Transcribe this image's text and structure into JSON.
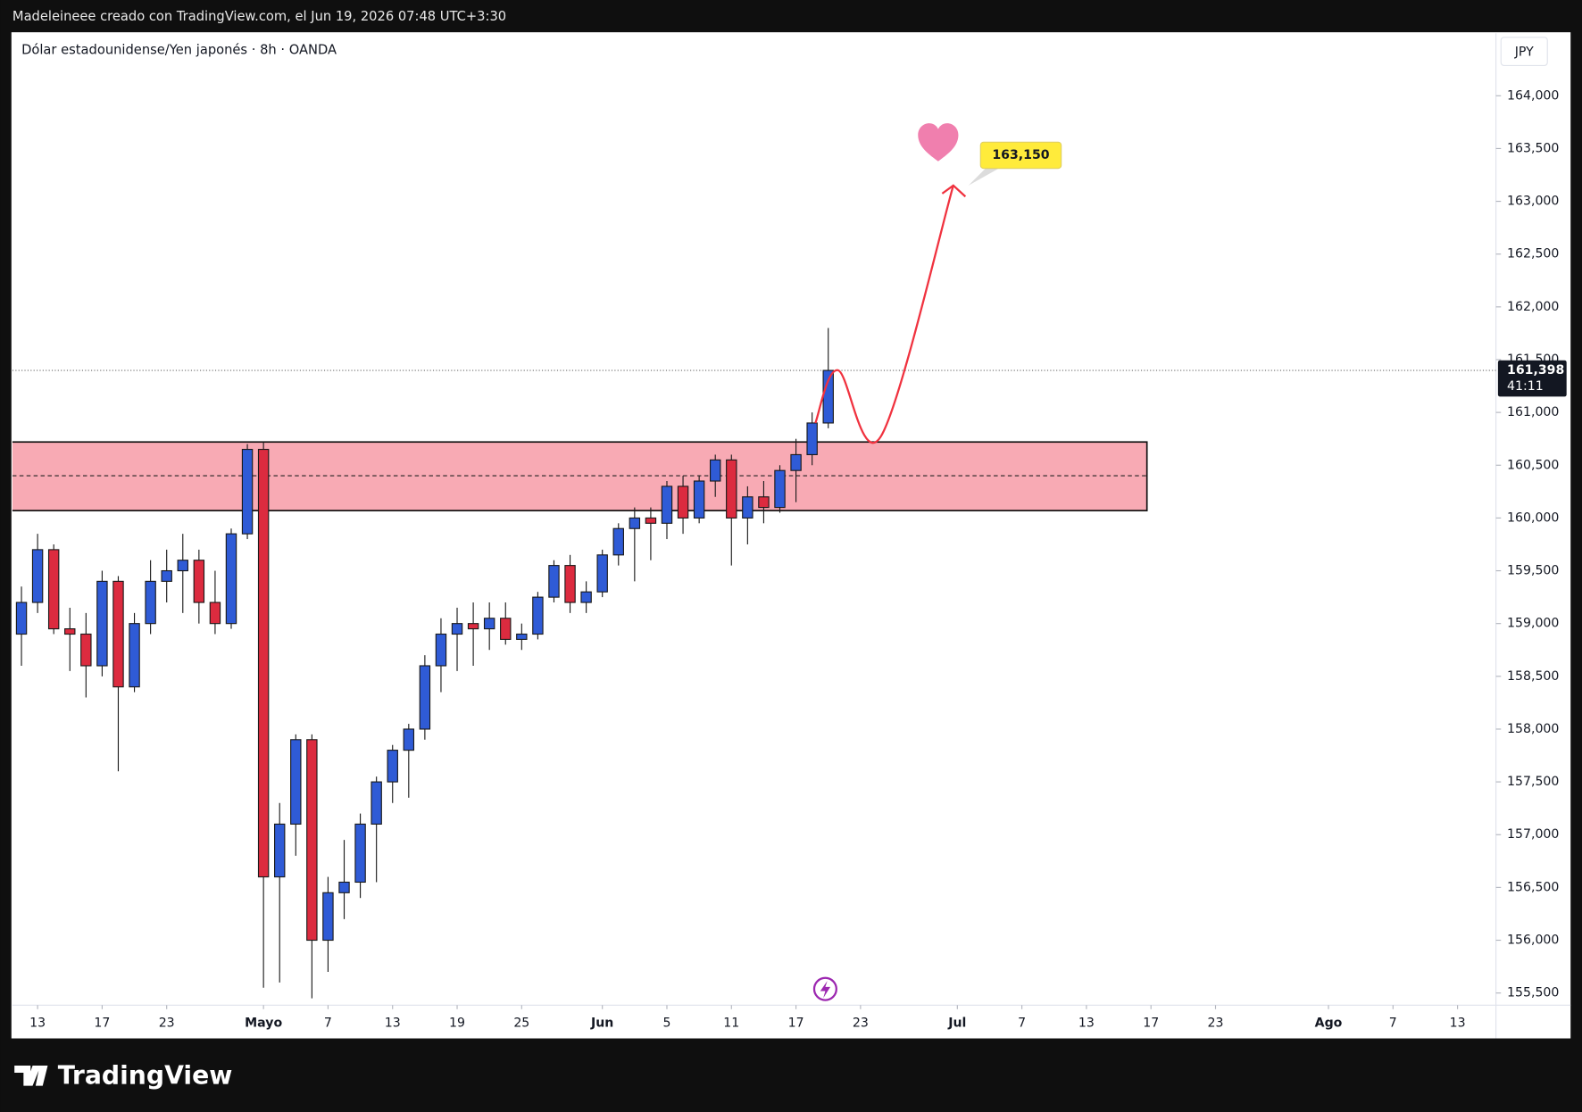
{
  "header": {
    "author_line": "Madeleineee creado con TradingView.com, el Jun 19, 2026 07:48 UTC+3:30",
    "symbol": "Dólar estadounidense/Yen japonés · 8h · OANDA",
    "currency": "JPY",
    "brand": "TradingView"
  },
  "chart_data": {
    "type": "candlestick",
    "x": [
      -1,
      0,
      1,
      2,
      3,
      4,
      5,
      6,
      7,
      8,
      9,
      10,
      11,
      12,
      13,
      14,
      15,
      16,
      17,
      18,
      19,
      20,
      21,
      22,
      23,
      24,
      25,
      26,
      27,
      28,
      29,
      30,
      31,
      32,
      33,
      34,
      35,
      36,
      37,
      38,
      39,
      40,
      41,
      42,
      43,
      44,
      45,
      46,
      47,
      48,
      49
    ],
    "open": [
      158.9,
      159.2,
      159.7,
      158.95,
      158.9,
      158.6,
      159.4,
      158.4,
      159.0,
      159.4,
      159.5,
      159.6,
      159.2,
      159.0,
      159.85,
      160.65,
      156.6,
      157.1,
      157.9,
      156.0,
      156.45,
      156.55,
      157.1,
      157.5,
      157.8,
      158.0,
      158.6,
      158.9,
      159.0,
      158.95,
      159.05,
      158.85,
      158.9,
      159.25,
      159.55,
      159.2,
      159.3,
      159.65,
      159.9,
      160.0,
      159.95,
      160.3,
      160.0,
      160.35,
      160.55,
      160.0,
      160.2,
      160.1,
      160.45,
      160.6,
      160.9
    ],
    "high": [
      159.35,
      159.85,
      159.75,
      159.15,
      159.1,
      159.5,
      159.45,
      159.1,
      159.6,
      159.7,
      159.85,
      159.7,
      159.5,
      159.9,
      160.7,
      160.72,
      157.3,
      157.95,
      157.95,
      156.6,
      156.95,
      157.2,
      157.55,
      157.85,
      158.05,
      158.7,
      159.05,
      159.15,
      159.2,
      159.2,
      159.2,
      159.0,
      159.3,
      159.6,
      159.65,
      159.4,
      159.7,
      159.95,
      160.1,
      160.1,
      160.35,
      160.4,
      160.4,
      160.6,
      160.6,
      160.3,
      160.35,
      160.5,
      160.75,
      161.0,
      161.8
    ],
    "low": [
      158.6,
      159.1,
      158.9,
      158.55,
      158.3,
      158.5,
      157.6,
      158.35,
      158.9,
      159.2,
      159.1,
      159.0,
      158.9,
      158.95,
      159.8,
      155.55,
      155.6,
      156.8,
      155.45,
      155.7,
      156.2,
      156.4,
      156.55,
      157.3,
      157.35,
      157.9,
      158.35,
      158.55,
      158.6,
      158.75,
      158.8,
      158.75,
      158.85,
      159.2,
      159.1,
      159.1,
      159.25,
      159.55,
      159.4,
      159.6,
      159.8,
      159.85,
      159.95,
      160.2,
      159.55,
      159.75,
      159.95,
      160.05,
      160.15,
      160.5,
      160.85
    ],
    "close": [
      159.2,
      159.7,
      158.95,
      158.9,
      158.6,
      159.4,
      158.4,
      159.0,
      159.4,
      159.5,
      159.6,
      159.2,
      159.0,
      159.85,
      160.65,
      156.6,
      157.1,
      157.9,
      156.0,
      156.45,
      156.55,
      157.1,
      157.5,
      157.8,
      158.0,
      158.6,
      158.9,
      159.0,
      158.95,
      159.05,
      158.85,
      158.9,
      159.25,
      159.55,
      159.2,
      159.3,
      159.65,
      159.9,
      160.0,
      159.95,
      160.3,
      160.0,
      160.35,
      160.55,
      160.0,
      160.2,
      160.1,
      160.45,
      160.6,
      160.9,
      161.398
    ],
    "up_color": "#2f5bd6",
    "down_color": "#dc2b3f",
    "xlim": [
      -1.56,
      90.38
    ],
    "ylim": [
      155.385,
      164.592
    ],
    "yticks": [
      {
        "value": 155.5,
        "label": "155,500"
      },
      {
        "value": 156.0,
        "label": "156,000"
      },
      {
        "value": 156.5,
        "label": "156,500"
      },
      {
        "value": 157.0,
        "label": "157,000"
      },
      {
        "value": 157.5,
        "label": "157,500"
      },
      {
        "value": 158.0,
        "label": "158,000"
      },
      {
        "value": 158.5,
        "label": "158,500"
      },
      {
        "value": 159.0,
        "label": "159,000"
      },
      {
        "value": 159.5,
        "label": "159,500"
      },
      {
        "value": 160.0,
        "label": "160,000"
      },
      {
        "value": 160.5,
        "label": "160,500"
      },
      {
        "value": 161.0,
        "label": "161,000"
      },
      {
        "value": 161.5,
        "label": "161,500"
      },
      {
        "value": 162.0,
        "label": "162,000"
      },
      {
        "value": 162.5,
        "label": "162,500"
      },
      {
        "value": 163.0,
        "label": "163,000"
      },
      {
        "value": 163.5,
        "label": "163,500"
      },
      {
        "value": 164.0,
        "label": "164,000"
      }
    ],
    "xticks": [
      {
        "value": 0,
        "label": "13"
      },
      {
        "value": 4,
        "label": "17"
      },
      {
        "value": 8,
        "label": "23"
      },
      {
        "value": 14,
        "label": "Mayo"
      },
      {
        "value": 18,
        "label": "7"
      },
      {
        "value": 22,
        "label": "13"
      },
      {
        "value": 26,
        "label": "19"
      },
      {
        "value": 30,
        "label": "25"
      },
      {
        "value": 35,
        "label": "Jun"
      },
      {
        "value": 39,
        "label": "5"
      },
      {
        "value": 43,
        "label": "11"
      },
      {
        "value": 47,
        "label": "17"
      },
      {
        "value": 51,
        "label": "23"
      },
      {
        "value": 57,
        "label": "Jul"
      },
      {
        "value": 61,
        "label": "7"
      },
      {
        "value": 65,
        "label": "13"
      },
      {
        "value": 69,
        "label": "17"
      },
      {
        "value": 73,
        "label": "23"
      },
      {
        "value": 80,
        "label": "Ago"
      },
      {
        "value": 84,
        "label": "7"
      },
      {
        "value": 88,
        "label": "13"
      }
    ],
    "last_price": {
      "value": 161.398,
      "label": "161,398"
    },
    "countdown": "41:11",
    "zone": {
      "top": 160.72,
      "bottom": 160.07,
      "mid": 160.4,
      "x_end": 68.75,
      "color": "#f8aab4"
    },
    "projection": {
      "x": [
        48.2,
        49.6,
        52.25,
        56.75
      ],
      "y": [
        160.9,
        161.4,
        160.77,
        163.15
      ],
      "color": "#f0323f"
    },
    "target": {
      "value": 163.15,
      "label": "163,150"
    }
  }
}
